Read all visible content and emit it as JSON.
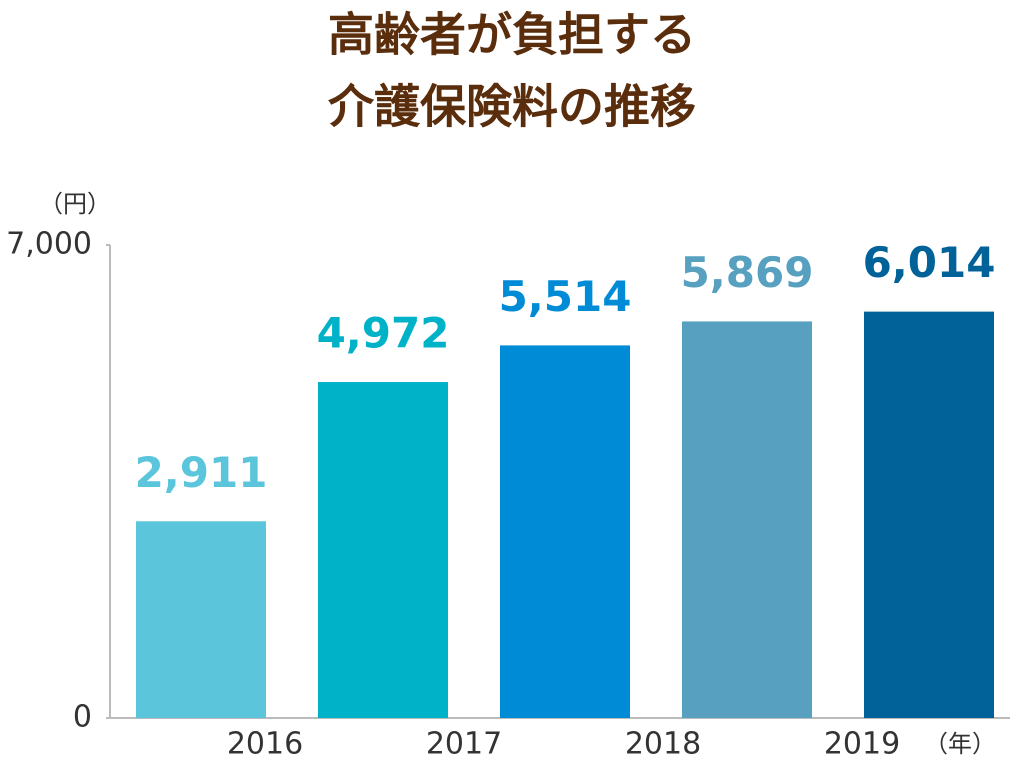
{
  "chart_data": {
    "type": "bar",
    "title": [
      "高齢者が負担する",
      "介護保険料の推移"
    ],
    "y_unit": "（円）",
    "x_unit": "（年）",
    "categories": [
      "2016",
      "2017",
      "2018",
      "2019",
      null
    ],
    "values": [
      2911,
      4972,
      5514,
      5869,
      6014
    ],
    "value_labels": [
      "2,911",
      "4,972",
      "5,514",
      "5,869",
      "6,014"
    ],
    "colors": [
      "#5bc5dc",
      "#00b2c8",
      "#008bd6",
      "#57a0c0",
      "#006298"
    ],
    "ylim": [
      0,
      7000
    ],
    "yticks": [
      0,
      {
        "value": 7000,
        "label": "7,000"
      }
    ]
  }
}
